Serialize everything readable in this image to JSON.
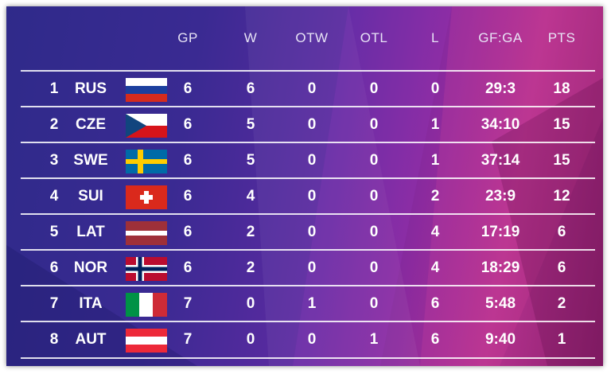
{
  "headers": {
    "gp": "GP",
    "w": "W",
    "otw": "OTW",
    "otl": "OTL",
    "l": "L",
    "gfga": "GF:GA",
    "pts": "PTS"
  },
  "rows": [
    {
      "rank": "1",
      "team": "RUS",
      "flag": "russia-flag-icon",
      "gp": "6",
      "w": "6",
      "otw": "0",
      "otl": "0",
      "l": "0",
      "gfga": "29:3",
      "pts": "18"
    },
    {
      "rank": "2",
      "team": "CZE",
      "flag": "czech-flag-icon",
      "gp": "6",
      "w": "5",
      "otw": "0",
      "otl": "0",
      "l": "1",
      "gfga": "34:10",
      "pts": "15"
    },
    {
      "rank": "3",
      "team": "SWE",
      "flag": "sweden-flag-icon",
      "gp": "6",
      "w": "5",
      "otw": "0",
      "otl": "0",
      "l": "1",
      "gfga": "37:14",
      "pts": "15"
    },
    {
      "rank": "4",
      "team": "SUI",
      "flag": "switzerland-flag-icon",
      "gp": "6",
      "w": "4",
      "otw": "0",
      "otl": "0",
      "l": "2",
      "gfga": "23:9",
      "pts": "12"
    },
    {
      "rank": "5",
      "team": "LAT",
      "flag": "latvia-flag-icon",
      "gp": "6",
      "w": "2",
      "otw": "0",
      "otl": "0",
      "l": "4",
      "gfga": "17:19",
      "pts": "6"
    },
    {
      "rank": "6",
      "team": "NOR",
      "flag": "norway-flag-icon",
      "gp": "6",
      "w": "2",
      "otw": "0",
      "otl": "0",
      "l": "4",
      "gfga": "18:29",
      "pts": "6"
    },
    {
      "rank": "7",
      "team": "ITA",
      "flag": "italy-flag-icon",
      "gp": "7",
      "w": "0",
      "otw": "1",
      "otl": "0",
      "l": "6",
      "gfga": "5:48",
      "pts": "2"
    },
    {
      "rank": "8",
      "team": "AUT",
      "flag": "austria-flag-icon",
      "gp": "7",
      "w": "0",
      "otw": "0",
      "otl": "1",
      "l": "6",
      "gfga": "9:40",
      "pts": "1"
    }
  ],
  "colors": {
    "background_start": "#2f2a8a",
    "background_end": "#b4328f",
    "text": "#ffffff",
    "header_text": "#e8e4f6",
    "row_line": "#ffffff"
  }
}
